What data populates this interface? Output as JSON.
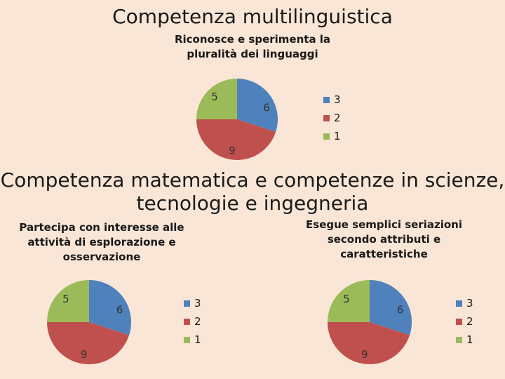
{
  "page": {
    "title": "Competenza multilinguistica",
    "section2_title_line1": "Competenza matematica e competenze in scienze,",
    "section2_title_line2": "tecnologie e ingegneria"
  },
  "chart_data": [
    {
      "type": "pie",
      "title": "Riconosce e sperimenta la pluralità dei linguaggi",
      "categories": [
        "3",
        "2",
        "1"
      ],
      "values": [
        6,
        9,
        5
      ],
      "colors": [
        "#4f81bd",
        "#c0504d",
        "#9bbb59"
      ],
      "legend": "right"
    },
    {
      "type": "pie",
      "title": "Partecipa con interesse alle attività di esplorazione e osservazione",
      "categories": [
        "3",
        "2",
        "1"
      ],
      "values": [
        6,
        9,
        5
      ],
      "colors": [
        "#4f81bd",
        "#c0504d",
        "#9bbb59"
      ],
      "legend": "right"
    },
    {
      "type": "pie",
      "title": "Esegue semplici seriazioni secondo attributi e caratteristiche",
      "categories": [
        "3",
        "2",
        "1"
      ],
      "values": [
        6,
        9,
        5
      ],
      "colors": [
        "#4f81bd",
        "#c0504d",
        "#9bbb59"
      ],
      "legend": "right"
    }
  ]
}
